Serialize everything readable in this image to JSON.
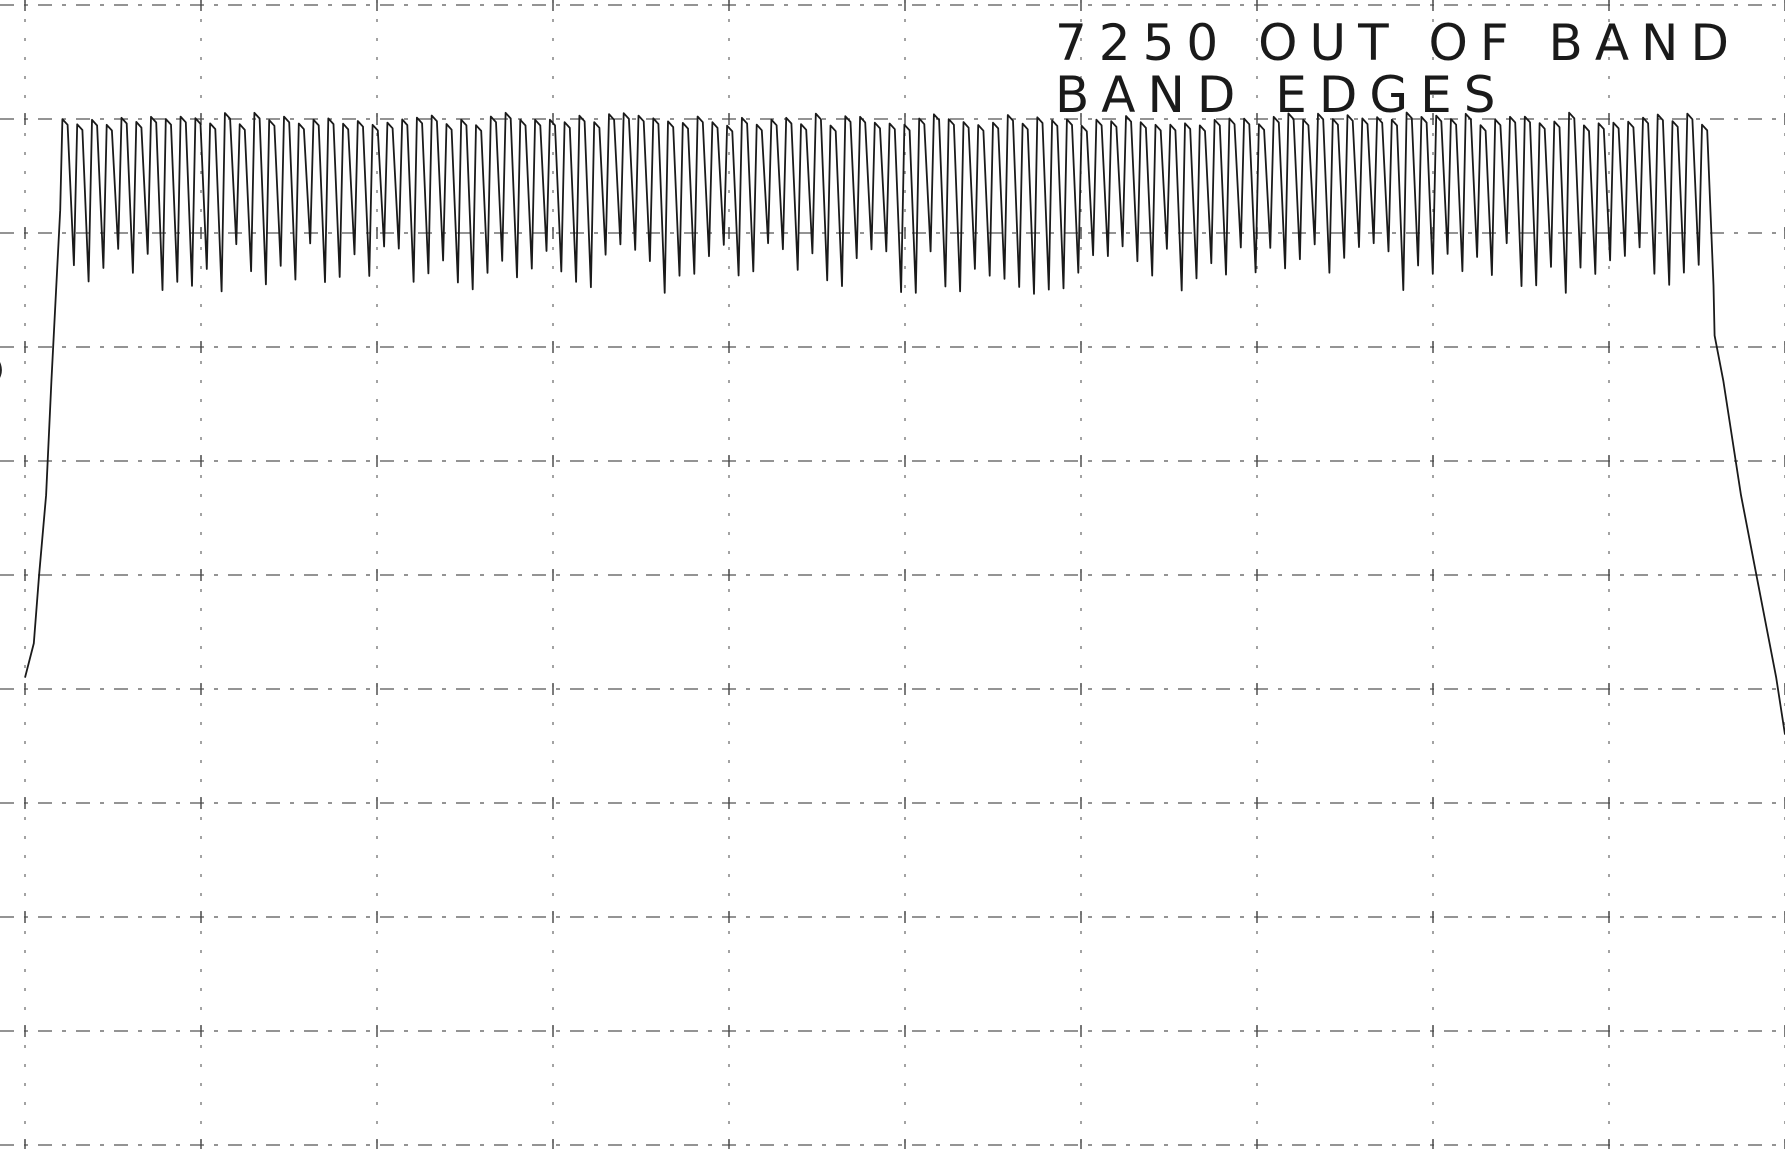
{
  "chart_data": {
    "type": "line",
    "title_lines": [
      "7250 OUT OF BAND",
      "BAND EDGES"
    ],
    "xlabel": "",
    "ylabel": "",
    "grid": true,
    "grid_style": "dashed",
    "xlim": [
      0,
      10
    ],
    "ylim": [
      0,
      10
    ],
    "grid_divisions": {
      "x": 10,
      "y": 10
    },
    "ink_color": "#1a1a1a",
    "series": [
      {
        "description_ref": "band trace",
        "band_start_x": 0.2,
        "band_end_x": 9.6,
        "ripple_top_y": 9.0,
        "ripple_bottom_y": 7.6,
        "ripple_count": 112,
        "edge_points": [
          {
            "x": 0.0,
            "y": 4.1
          },
          {
            "x": 0.05,
            "y": 4.4
          },
          {
            "x": 0.08,
            "y": 5.0
          },
          {
            "x": 0.12,
            "y": 5.7
          },
          {
            "x": 0.15,
            "y": 6.7
          },
          {
            "x": 0.2,
            "y": 8.2
          },
          {
            "x": 9.6,
            "y": 7.1
          },
          {
            "x": 9.65,
            "y": 6.7
          },
          {
            "x": 9.75,
            "y": 5.7
          },
          {
            "x": 9.85,
            "y": 4.9
          },
          {
            "x": 9.95,
            "y": 4.1
          },
          {
            "x": 10.0,
            "y": 3.6
          }
        ]
      }
    ]
  },
  "stray_mark": ")"
}
